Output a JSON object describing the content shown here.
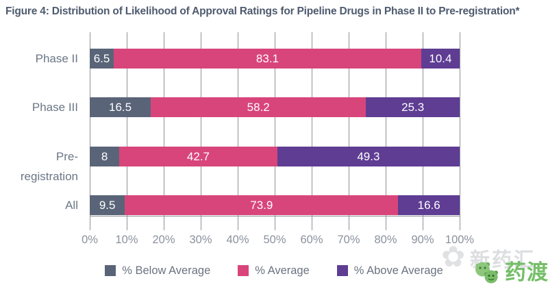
{
  "figure": {
    "title": "Figure 4: Distribution of Likelihood of Approval Ratings for Pipeline Drugs in Phase II to Pre-registration*"
  },
  "colors": {
    "below_average": "#5a6478",
    "average": "#d8457b",
    "above_average": "#5e3d93",
    "title_text": "#4e5a6e",
    "axis_text": "#8a919d",
    "gridline": "#8d9197"
  },
  "chart_data": {
    "type": "bar",
    "orientation": "horizontal",
    "stacked": true,
    "title": "Figure 4: Distribution of Likelihood of Approval Ratings for Pipeline Drugs in Phase II to Pre-registration*",
    "categories": [
      "Phase II",
      "Phase III",
      "Pre-registration",
      "All"
    ],
    "series": [
      {
        "name": "% Below Average",
        "color": "#5a6478",
        "values": [
          6.5,
          16.5,
          8,
          9.5
        ]
      },
      {
        "name": "% Average",
        "color": "#d8457b",
        "values": [
          83.1,
          58.2,
          42.7,
          73.9
        ]
      },
      {
        "name": "% Above Average",
        "color": "#5e3d93",
        "values": [
          10.4,
          25.3,
          49.3,
          16.6
        ]
      }
    ],
    "value_labels": [
      [
        "6.5",
        "83.1",
        "10.4"
      ],
      [
        "16.5",
        "58.2",
        "25.3"
      ],
      [
        "8",
        "42.7",
        "49.3"
      ],
      [
        "9.5",
        "73.9",
        "16.6"
      ]
    ],
    "x_ticks": [
      "0%",
      "10%",
      "20%",
      "30%",
      "40%",
      "50%",
      "60%",
      "70%",
      "80%",
      "90%",
      "100%"
    ],
    "xlim": [
      0,
      100
    ],
    "grid": true,
    "legend_position": "bottom"
  },
  "legend": {
    "items": [
      {
        "label": "% Below Average",
        "color": "#5a6478"
      },
      {
        "label": "% Average",
        "color": "#d8457b"
      },
      {
        "label": "% Above Average",
        "color": "#5e3d93"
      }
    ]
  },
  "watermark": {
    "background_text": "新药汇",
    "logo_text": "药渡"
  }
}
